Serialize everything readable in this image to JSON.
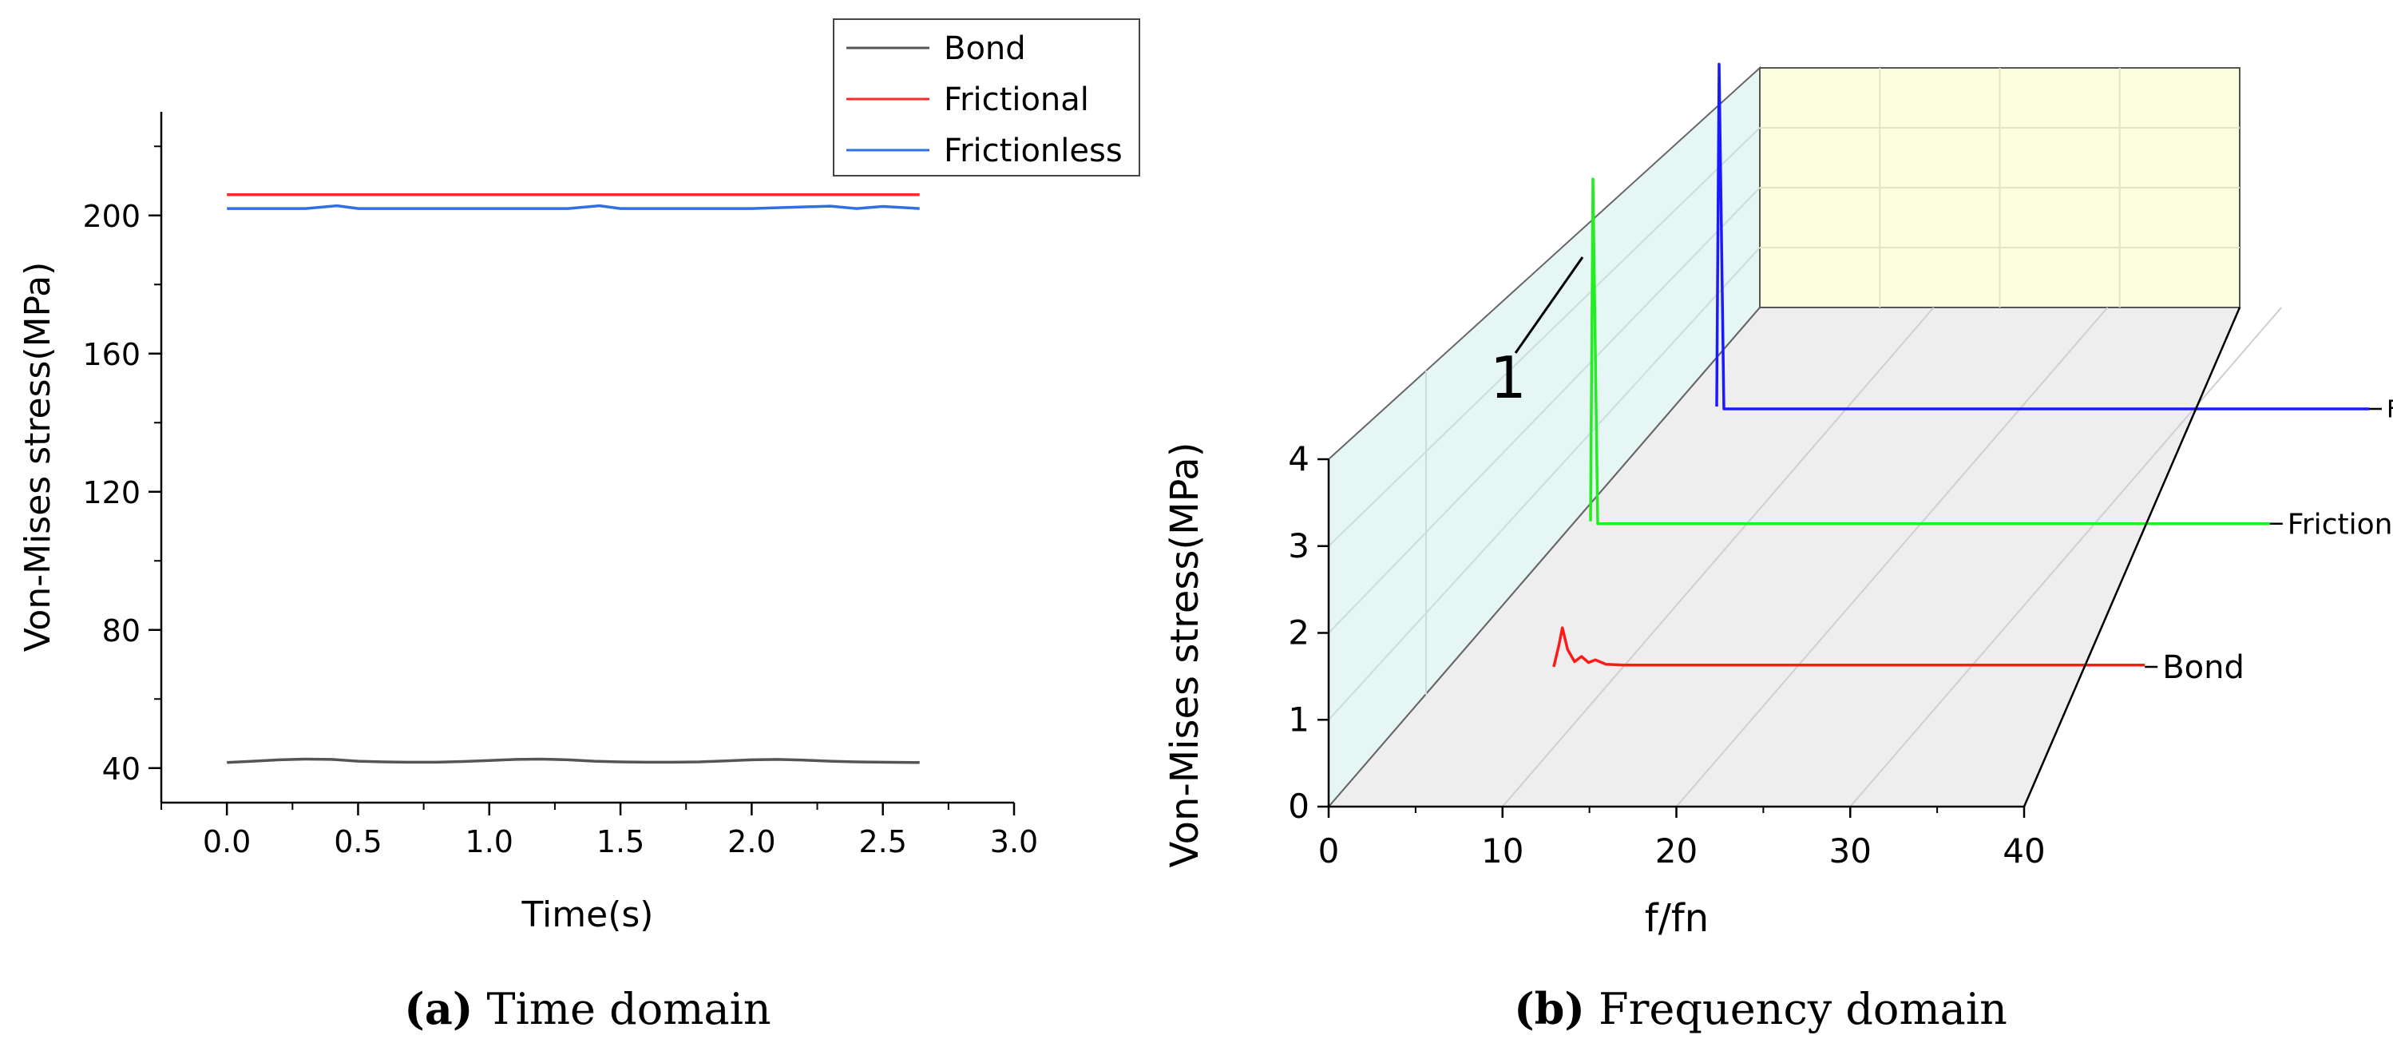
{
  "chart_data": [
    {
      "type": "line",
      "title": "",
      "xlabel": "Time(s)",
      "ylabel": "Von-Mises stress(MPa)",
      "xlim": [
        -0.25,
        3.0
      ],
      "ylim": [
        30,
        230
      ],
      "x_ticks": [
        "0.0",
        "0.5",
        "1.0",
        "1.5",
        "2.0",
        "2.5",
        "3.0"
      ],
      "y_ticks": [
        "40",
        "80",
        "120",
        "160",
        "200"
      ],
      "legend_position": "top-right",
      "series": [
        {
          "name": "Bond",
          "color": "#555555",
          "x": [
            0.0,
            0.1,
            0.2,
            0.3,
            0.4,
            0.5,
            0.6,
            0.7,
            0.8,
            0.9,
            1.0,
            1.1,
            1.2,
            1.3,
            1.4,
            1.5,
            1.6,
            1.7,
            1.8,
            1.9,
            2.0,
            2.1,
            2.2,
            2.3,
            2.4,
            2.5,
            2.64
          ],
          "y": [
            41.6,
            42.0,
            42.4,
            42.6,
            42.5,
            42.0,
            41.8,
            41.7,
            41.7,
            41.9,
            42.2,
            42.5,
            42.6,
            42.4,
            42.0,
            41.8,
            41.7,
            41.7,
            41.8,
            42.1,
            42.4,
            42.5,
            42.3,
            42.0,
            41.8,
            41.7,
            41.6
          ]
        },
        {
          "name": "Frictional",
          "color": "#ff2a2a",
          "x": [
            0.0,
            2.64
          ],
          "y": [
            206,
            206
          ]
        },
        {
          "name": "Frictionless",
          "color": "#2f6fe0",
          "x": [
            0.0,
            0.3,
            0.42,
            0.5,
            0.7,
            1.0,
            1.3,
            1.42,
            1.5,
            1.7,
            2.0,
            2.3,
            2.4,
            2.5,
            2.64
          ],
          "y": [
            202,
            202,
            202.8,
            202,
            202,
            202,
            202,
            202.8,
            202,
            202,
            202,
            202.7,
            202,
            202.6,
            202
          ]
        }
      ],
      "caption_label": "(a)",
      "caption_text": "Time domain"
    },
    {
      "type": "line",
      "subtype": "waterfall-3d",
      "title": "",
      "xlabel": "f/fn",
      "ylabel": "Von-Mises stress(MPa)",
      "xlim": [
        0,
        40
      ],
      "zlim": [
        0,
        4
      ],
      "x_ticks": [
        "0",
        "10",
        "20",
        "30",
        "40"
      ],
      "z_ticks": [
        "0",
        "1",
        "2",
        "3",
        "4"
      ],
      "annotation": "1",
      "series": [
        {
          "name": "Bond",
          "color": "#ff1a1a",
          "x": [
            0,
            6,
            6.3,
            6.5,
            6.8,
            7.2,
            7.6,
            8.0,
            8.4,
            9.0,
            10,
            40
          ],
          "y": [
            0,
            0,
            0.25,
            0.45,
            0.2,
            0.06,
            0.12,
            0.05,
            0.08,
            0.03,
            0.02,
            0.02
          ]
        },
        {
          "name": "Frictional",
          "color": "#22ee22",
          "x": [
            0,
            0.3,
            0.7,
            1.0,
            40
          ],
          "y": [
            0,
            0,
            3.95,
            0.05,
            0.02
          ]
        },
        {
          "name": "Frictionless",
          "color": "#1a1aff",
          "x": [
            0,
            0.3,
            0.7,
            1.0,
            40
          ],
          "y": [
            0,
            0,
            3.95,
            0.05,
            0.02
          ]
        }
      ],
      "caption_label": "(b)",
      "caption_text": "Frequency domain"
    }
  ]
}
